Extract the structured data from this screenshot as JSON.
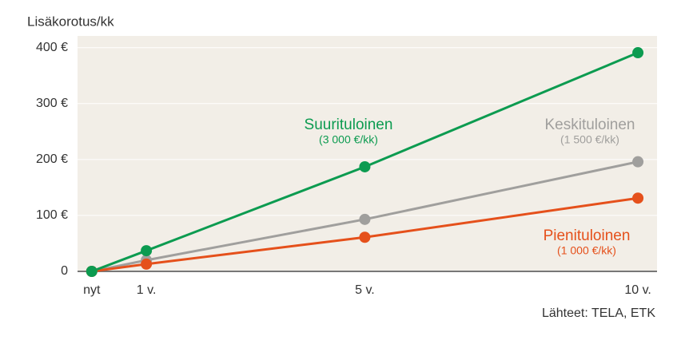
{
  "chart_data": {
    "type": "line",
    "y_axis_label": "Lisäkorotus/kk",
    "x": [
      0,
      1,
      5,
      10
    ],
    "xlim": [
      -0.26,
      10.35
    ],
    "xticks": [
      {
        "value": 0,
        "label": "nyt"
      },
      {
        "value": 1,
        "label": "1 v."
      },
      {
        "value": 5,
        "label": "5 v."
      },
      {
        "value": 10,
        "label": "10 v."
      }
    ],
    "ylim": [
      0,
      421
    ],
    "yticks": [
      0,
      {
        "value": 100,
        "label": "100 €"
      },
      {
        "value": 200,
        "label": "200 €"
      },
      {
        "value": 300,
        "label": "300 €"
      },
      {
        "value": 400,
        "label": "400 €"
      }
    ],
    "grid": true,
    "series": [
      {
        "name": "Keskituloinen",
        "note": "(1 500 €/kk)",
        "color": "#a09f9d",
        "values": [
          0,
          20,
          93,
          196
        ]
      },
      {
        "name": "Pienituloinen",
        "note": "(1 000 €/kk)",
        "color": "#e5501b",
        "values": [
          0,
          13,
          61,
          131
        ]
      },
      {
        "name": "Suurituloinen",
        "note": "(3 000 €/kk)",
        "color": "#0c9b50",
        "values": [
          0,
          37,
          187,
          391
        ]
      }
    ],
    "source": "Lähteet: TELA, ETK"
  }
}
